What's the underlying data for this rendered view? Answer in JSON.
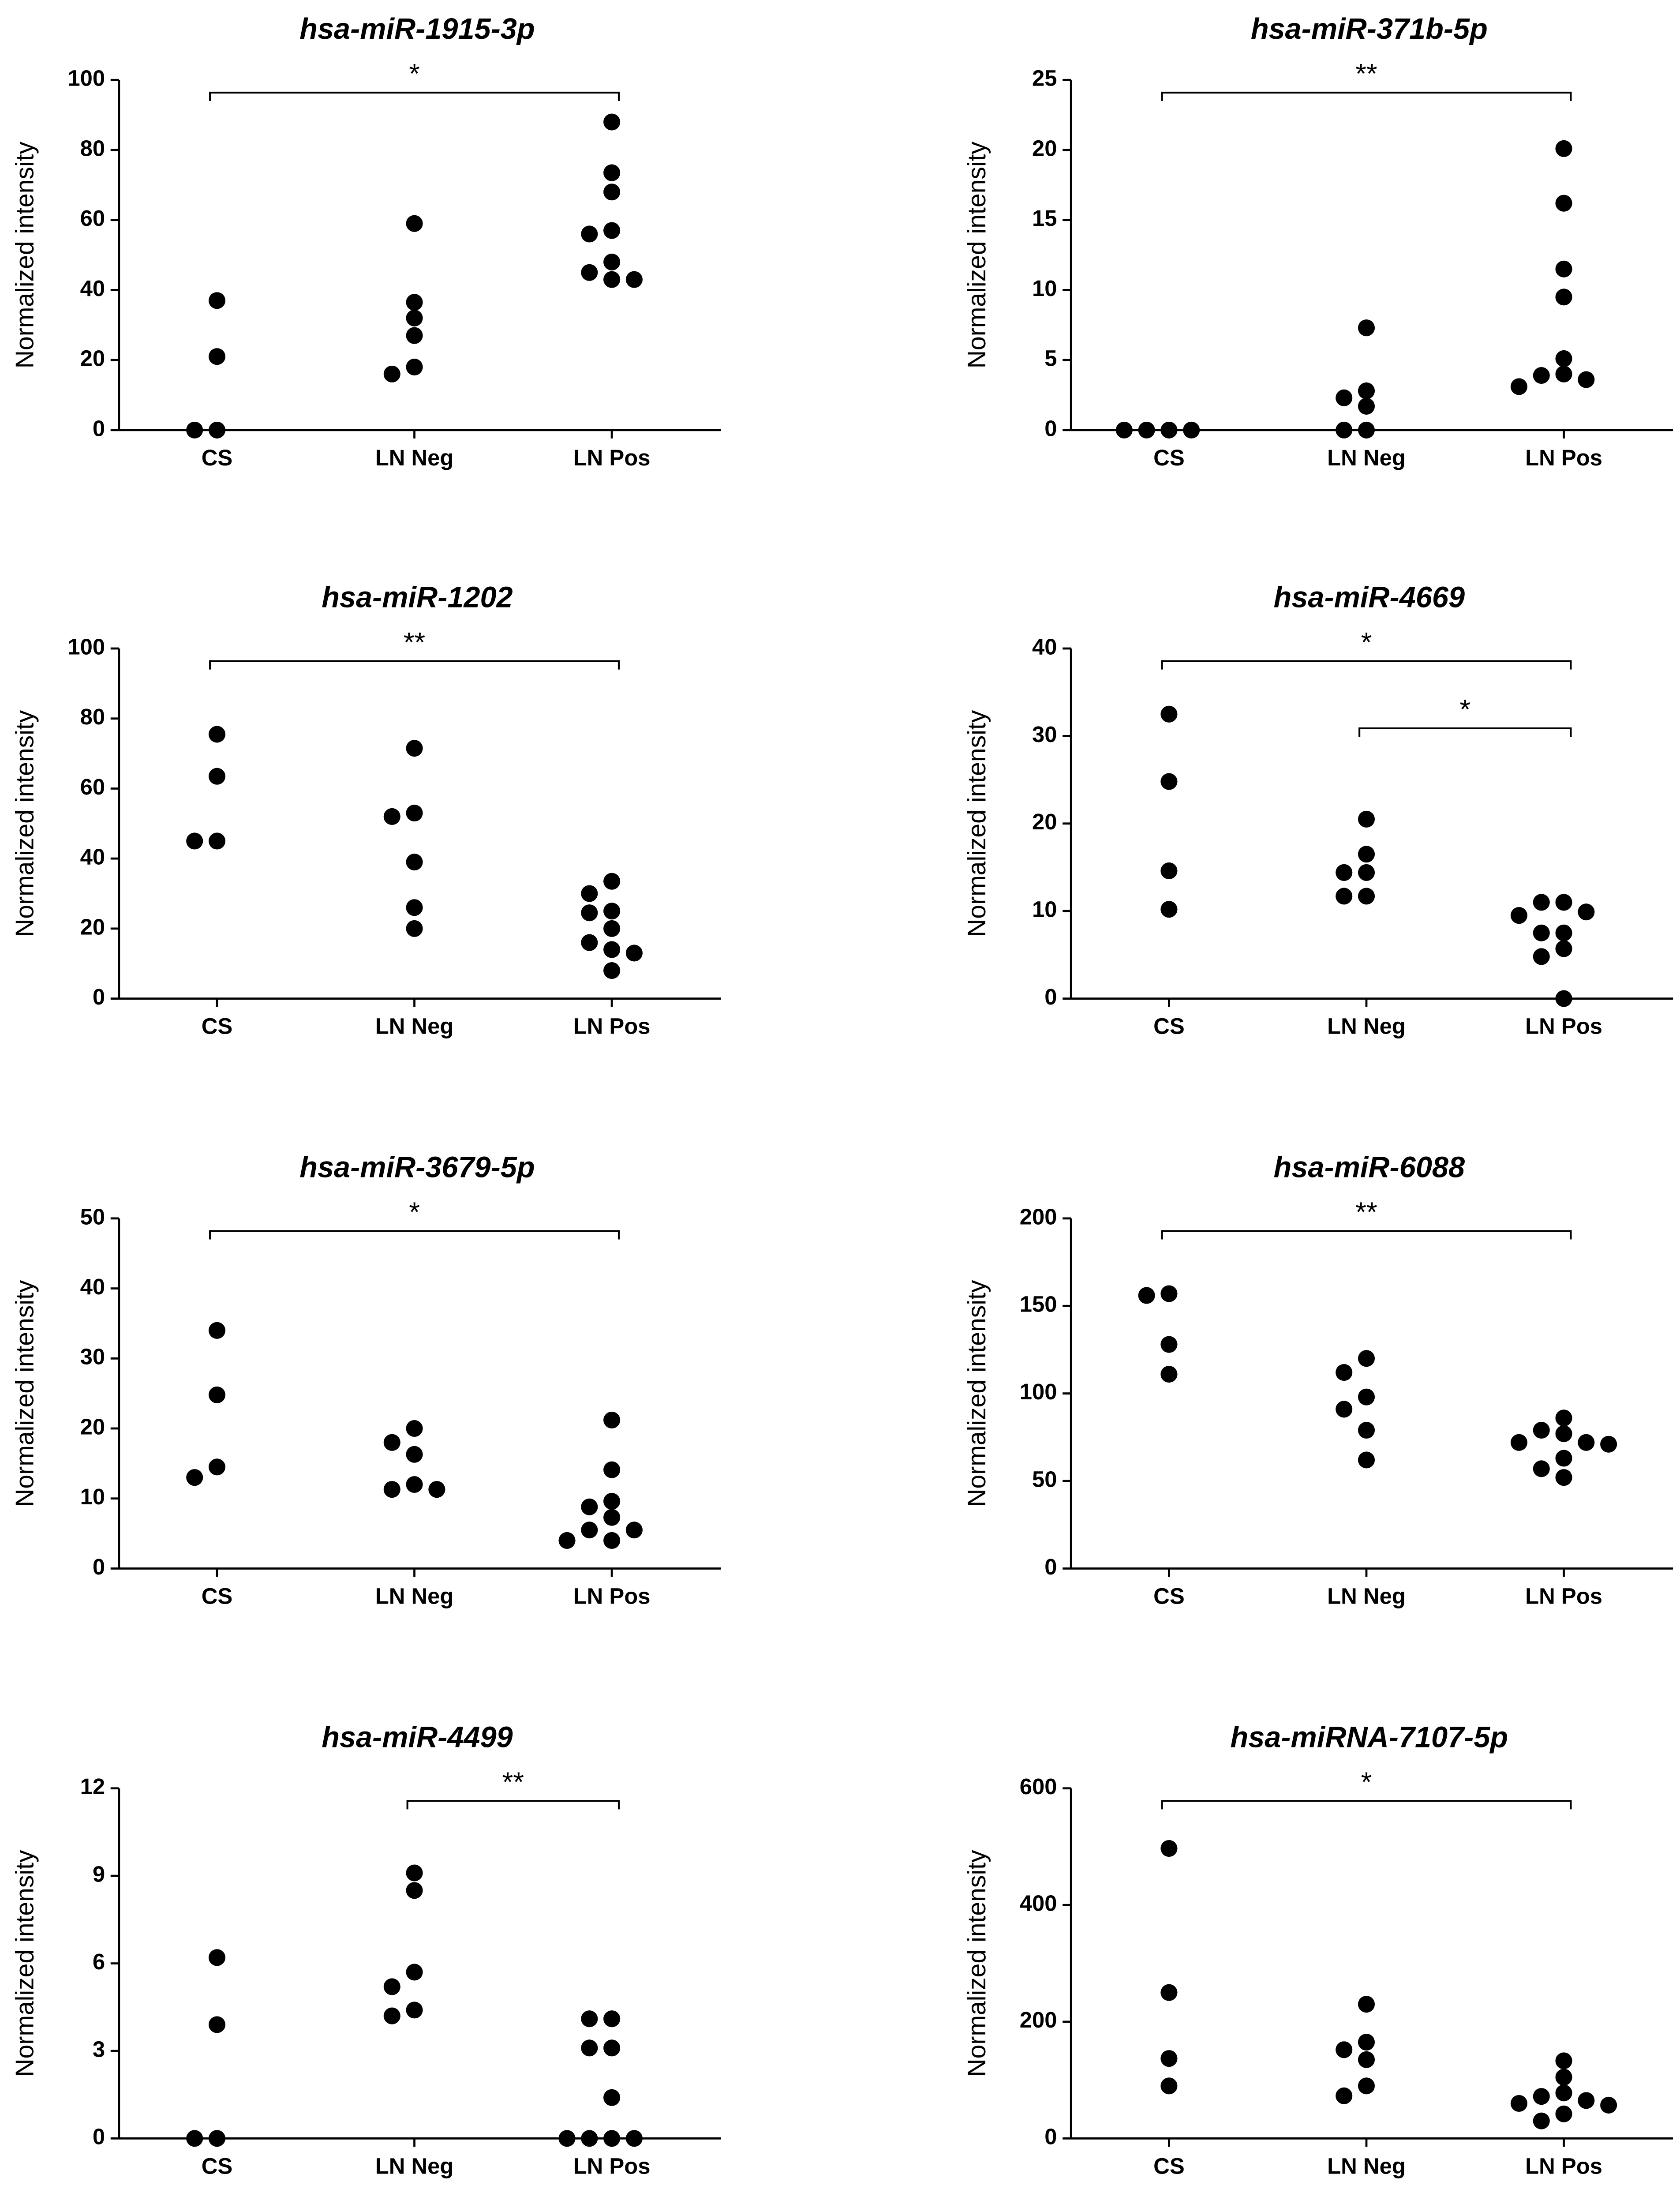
{
  "chart_data": [
    {
      "type": "scatter",
      "title": "hsa-miR-1915-3p",
      "ylabel": "Normalized intensity",
      "categories": [
        "CS",
        "LN Neg",
        "LN Pos"
      ],
      "values": [
        [
          37,
          21,
          0,
          0
        ],
        [
          59,
          36.5,
          32,
          27,
          18,
          16
        ],
        [
          88,
          73.5,
          68,
          57,
          56,
          48,
          45,
          43,
          43
        ]
      ],
      "ylim": [
        0,
        100
      ],
      "yticks": [
        0,
        20,
        40,
        60,
        80,
        100
      ],
      "color": "#000000",
      "brackets": [
        {
          "from": 0,
          "to": 2,
          "label": "*"
        }
      ]
    },
    {
      "type": "scatter",
      "title": "hsa-miR-371b-5p",
      "ylabel": "Normalized intensity",
      "categories": [
        "CS",
        "LN Neg",
        "LN Pos"
      ],
      "values": [
        [
          0,
          0,
          0,
          0
        ],
        [
          7.3,
          2.8,
          2.3,
          1.7,
          0,
          0
        ],
        [
          20.1,
          16.2,
          11.5,
          9.5,
          5.1,
          4.0,
          3.9,
          3.6,
          3.1
        ]
      ],
      "ylim": [
        0,
        25
      ],
      "yticks": [
        0,
        5,
        10,
        15,
        20,
        25
      ],
      "color": "#000000",
      "brackets": [
        {
          "from": 0,
          "to": 2,
          "label": "**"
        }
      ]
    },
    {
      "type": "scatter",
      "title": "hsa-miR-1202",
      "ylabel": "Normalized intensity",
      "categories": [
        "CS",
        "LN Neg",
        "LN Pos"
      ],
      "values": [
        [
          75.5,
          63.5,
          45,
          45
        ],
        [
          71.5,
          53,
          52,
          39,
          26,
          20
        ],
        [
          33.5,
          30,
          25,
          24.5,
          20,
          16,
          14,
          13,
          8
        ]
      ],
      "ylim": [
        0,
        100
      ],
      "yticks": [
        0,
        20,
        40,
        60,
        80,
        100
      ],
      "color": "#000000",
      "brackets": [
        {
          "from": 0,
          "to": 2,
          "label": "**"
        }
      ]
    },
    {
      "type": "scatter",
      "title": "hsa-miR-4669",
      "ylabel": "Normalized intensity",
      "categories": [
        "CS",
        "LN Neg",
        "LN Pos"
      ],
      "values": [
        [
          32.5,
          24.8,
          14.6,
          10.2
        ],
        [
          20.5,
          16.5,
          14.4,
          14.4,
          11.7,
          11.7
        ],
        [
          11,
          11,
          9.9,
          9.5,
          7.5,
          7.5,
          5.7,
          4.8,
          0
        ]
      ],
      "ylim": [
        0,
        40
      ],
      "yticks": [
        0,
        10,
        20,
        30,
        40
      ],
      "color": "#000000",
      "brackets": [
        {
          "from": 0,
          "to": 2,
          "label": "*"
        },
        {
          "from": 1,
          "to": 2,
          "label": "*"
        }
      ]
    },
    {
      "type": "scatter",
      "title": "hsa-miR-3679-5p",
      "ylabel": "Normalized intensity",
      "categories": [
        "CS",
        "LN Neg",
        "LN Pos"
      ],
      "values": [
        [
          34,
          24.8,
          14.5,
          13
        ],
        [
          20,
          18,
          16.3,
          12,
          11.3,
          11.3
        ],
        [
          21.2,
          14.1,
          9.6,
          8.8,
          7.3,
          5.5,
          5.5,
          4.0,
          4.0
        ]
      ],
      "ylim": [
        0,
        50
      ],
      "yticks": [
        0,
        10,
        20,
        30,
        40,
        50
      ],
      "color": "#000000",
      "brackets": [
        {
          "from": 0,
          "to": 2,
          "label": "*"
        }
      ]
    },
    {
      "type": "scatter",
      "title": "hsa-miR-6088",
      "ylabel": "Normalized intensity",
      "categories": [
        "CS",
        "LN Neg",
        "LN Pos"
      ],
      "values": [
        [
          157,
          156,
          128,
          111
        ],
        [
          120,
          112,
          98,
          91,
          79,
          62
        ],
        [
          86,
          79,
          77,
          72,
          72,
          71,
          63,
          57,
          52
        ]
      ],
      "ylim": [
        0,
        200
      ],
      "yticks": [
        0,
        50,
        100,
        150,
        200
      ],
      "color": "#000000",
      "brackets": [
        {
          "from": 0,
          "to": 2,
          "label": "**"
        }
      ]
    },
    {
      "type": "scatter",
      "title": "hsa-miR-4499",
      "ylabel": "Normalized intensity",
      "categories": [
        "CS",
        "LN Neg",
        "LN Pos"
      ],
      "values": [
        [
          6.2,
          3.9,
          0,
          0
        ],
        [
          9.1,
          8.5,
          5.7,
          5.2,
          4.4,
          4.2
        ],
        [
          4.1,
          4.1,
          3.1,
          3.1,
          1.4,
          0,
          0,
          0,
          0
        ]
      ],
      "ylim": [
        0,
        12
      ],
      "yticks": [
        0,
        3,
        6,
        9,
        12
      ],
      "color": "#000000",
      "brackets": [
        {
          "from": 1,
          "to": 2,
          "label": "**"
        }
      ]
    },
    {
      "type": "scatter",
      "title": "hsa-miRNA-7107-5p",
      "ylabel": "Normalized intensity",
      "categories": [
        "CS",
        "LN Neg",
        "LN Pos"
      ],
      "values": [
        [
          497,
          250,
          137,
          90
        ],
        [
          230,
          165,
          152,
          135,
          90,
          73
        ],
        [
          133,
          105,
          78,
          72,
          65,
          60,
          57,
          42,
          30
        ]
      ],
      "ylim": [
        0,
        600
      ],
      "yticks": [
        0,
        200,
        400,
        600
      ],
      "color": "#000000",
      "brackets": [
        {
          "from": 0,
          "to": 2,
          "label": "*"
        }
      ]
    }
  ]
}
